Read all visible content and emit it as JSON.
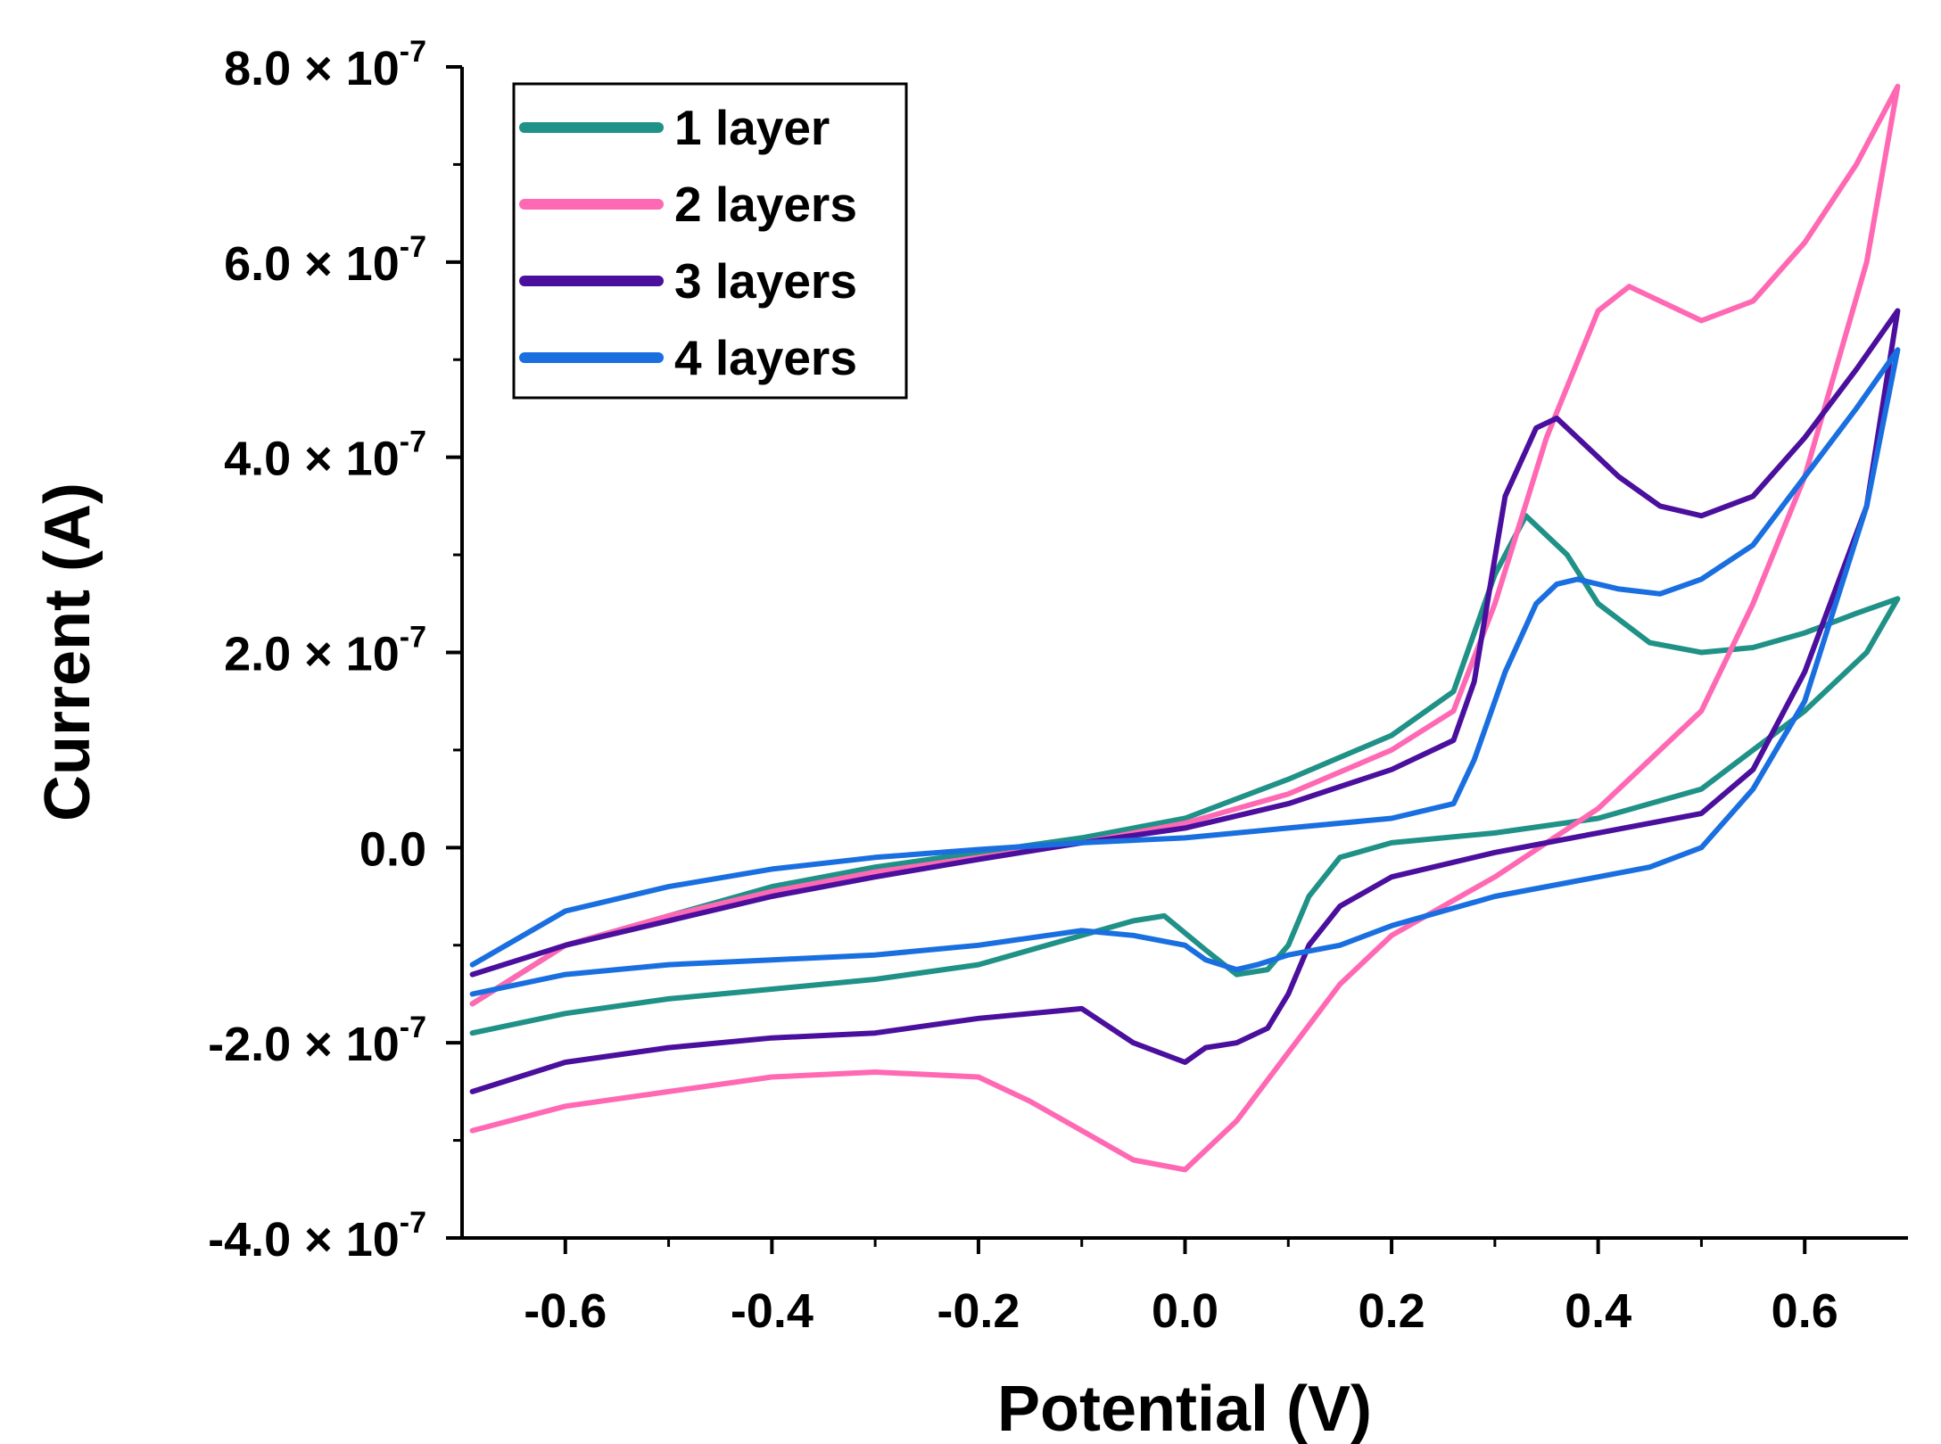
{
  "chart_data": {
    "type": "line",
    "title": "",
    "xlabel": "Potential (V)",
    "ylabel": "Current (A)",
    "xlim": [
      -0.7,
      0.7
    ],
    "ylim": [
      -4e-07,
      8e-07
    ],
    "grid": false,
    "legend_position": "top-left",
    "x_ticks": [
      {
        "value": -0.6,
        "label": "-0.6"
      },
      {
        "value": -0.4,
        "label": "-0.4"
      },
      {
        "value": -0.2,
        "label": "-0.2"
      },
      {
        "value": 0.0,
        "label": "0.0"
      },
      {
        "value": 0.2,
        "label": "0.2"
      },
      {
        "value": 0.4,
        "label": "0.4"
      },
      {
        "value": 0.6,
        "label": "0.6"
      }
    ],
    "y_ticks": [
      {
        "value": 8e-07,
        "label": "8.0 × 10",
        "exp": "-7"
      },
      {
        "value": 6e-07,
        "label": "6.0 × 10",
        "exp": "-7"
      },
      {
        "value": 4e-07,
        "label": "4.0 × 10",
        "exp": "-7"
      },
      {
        "value": 2e-07,
        "label": "2.0 × 10",
        "exp": "-7"
      },
      {
        "value": 0.0,
        "label": "0.0",
        "exp": ""
      },
      {
        "value": -2e-07,
        "label": "-2.0 × 10",
        "exp": "-7"
      },
      {
        "value": -4e-07,
        "label": "-4.0 × 10",
        "exp": "-7"
      }
    ],
    "series": [
      {
        "name": "1 layer",
        "color": "#1f9187",
        "x": [
          -0.69,
          -0.6,
          -0.5,
          -0.4,
          -0.3,
          -0.2,
          -0.1,
          0.0,
          0.1,
          0.2,
          0.26,
          0.3,
          0.33,
          0.37,
          0.4,
          0.45,
          0.5,
          0.55,
          0.6,
          0.65,
          0.69,
          0.66,
          0.6,
          0.5,
          0.4,
          0.3,
          0.2,
          0.15,
          0.12,
          0.1,
          0.08,
          0.05,
          0.02,
          -0.02,
          -0.05,
          -0.1,
          -0.2,
          -0.3,
          -0.4,
          -0.5,
          -0.6,
          -0.69
        ],
        "y": [
          -1.6e-07,
          -1e-07,
          -7e-08,
          -4e-08,
          -2e-08,
          -5e-09,
          1e-08,
          3e-08,
          7e-08,
          1.15e-07,
          1.6e-07,
          2.8e-07,
          3.4e-07,
          3e-07,
          2.5e-07,
          2.1e-07,
          2e-07,
          2.05e-07,
          2.2e-07,
          2.4e-07,
          2.55e-07,
          2e-07,
          1.4e-07,
          6e-08,
          3e-08,
          1.5e-08,
          5e-09,
          -1e-08,
          -5e-08,
          -1e-07,
          -1.25e-07,
          -1.3e-07,
          -1.05e-07,
          -7e-08,
          -7.5e-08,
          -9e-08,
          -1.2e-07,
          -1.35e-07,
          -1.45e-07,
          -1.55e-07,
          -1.7e-07,
          -1.9e-07
        ]
      },
      {
        "name": "2 layers",
        "color": "#ff69b4",
        "x": [
          -0.69,
          -0.6,
          -0.5,
          -0.4,
          -0.3,
          -0.2,
          -0.1,
          0.0,
          0.1,
          0.2,
          0.26,
          0.3,
          0.35,
          0.4,
          0.43,
          0.46,
          0.5,
          0.55,
          0.6,
          0.65,
          0.69,
          0.66,
          0.6,
          0.55,
          0.5,
          0.4,
          0.3,
          0.2,
          0.15,
          0.1,
          0.05,
          0.0,
          -0.05,
          -0.1,
          -0.15,
          -0.2,
          -0.3,
          -0.4,
          -0.5,
          -0.6,
          -0.69
        ],
        "y": [
          -1.6e-07,
          -1e-07,
          -7e-08,
          -4.5e-08,
          -2.5e-08,
          -1e-08,
          5e-09,
          2.5e-08,
          5.5e-08,
          1e-07,
          1.4e-07,
          2.5e-07,
          4.2e-07,
          5.5e-07,
          5.75e-07,
          5.6e-07,
          5.4e-07,
          5.6e-07,
          6.2e-07,
          7e-07,
          7.8e-07,
          6e-07,
          3.8e-07,
          2.5e-07,
          1.4e-07,
          4e-08,
          -3e-08,
          -9e-08,
          -1.4e-07,
          -2.1e-07,
          -2.8e-07,
          -3.3e-07,
          -3.2e-07,
          -2.9e-07,
          -2.6e-07,
          -2.35e-07,
          -2.3e-07,
          -2.35e-07,
          -2.5e-07,
          -2.65e-07,
          -2.9e-07
        ]
      },
      {
        "name": "3 layers",
        "color": "#4b0f9e",
        "x": [
          -0.69,
          -0.6,
          -0.5,
          -0.4,
          -0.3,
          -0.2,
          -0.1,
          0.0,
          0.1,
          0.2,
          0.26,
          0.28,
          0.31,
          0.34,
          0.36,
          0.38,
          0.42,
          0.46,
          0.5,
          0.55,
          0.6,
          0.65,
          0.69,
          0.66,
          0.6,
          0.55,
          0.5,
          0.4,
          0.3,
          0.2,
          0.15,
          0.12,
          0.1,
          0.08,
          0.05,
          0.02,
          0.0,
          -0.05,
          -0.1,
          -0.2,
          -0.3,
          -0.4,
          -0.5,
          -0.6,
          -0.69
        ],
        "y": [
          -1.3e-07,
          -1e-07,
          -7.5e-08,
          -5e-08,
          -3e-08,
          -1.2e-08,
          5e-09,
          2e-08,
          4.5e-08,
          8e-08,
          1.1e-07,
          1.7e-07,
          3.6e-07,
          4.3e-07,
          4.4e-07,
          4.2e-07,
          3.8e-07,
          3.5e-07,
          3.4e-07,
          3.6e-07,
          4.2e-07,
          4.9e-07,
          5.5e-07,
          3.5e-07,
          1.8e-07,
          8e-08,
          3.5e-08,
          1.5e-08,
          -5e-09,
          -3e-08,
          -6e-08,
          -1e-07,
          -1.5e-07,
          -1.85e-07,
          -2e-07,
          -2.05e-07,
          -2.2e-07,
          -2e-07,
          -1.65e-07,
          -1.75e-07,
          -1.9e-07,
          -1.95e-07,
          -2.05e-07,
          -2.2e-07,
          -2.5e-07
        ]
      },
      {
        "name": "4 layers",
        "color": "#1a6fe0",
        "x": [
          -0.69,
          -0.6,
          -0.5,
          -0.4,
          -0.3,
          -0.2,
          -0.1,
          0.0,
          0.1,
          0.2,
          0.26,
          0.28,
          0.31,
          0.34,
          0.36,
          0.38,
          0.42,
          0.46,
          0.5,
          0.55,
          0.6,
          0.65,
          0.69,
          0.66,
          0.6,
          0.55,
          0.5,
          0.45,
          0.4,
          0.3,
          0.2,
          0.15,
          0.1,
          0.07,
          0.05,
          0.02,
          0.0,
          -0.05,
          -0.1,
          -0.2,
          -0.3,
          -0.4,
          -0.5,
          -0.6,
          -0.69
        ],
        "y": [
          -1.2e-07,
          -6.5e-08,
          -4e-08,
          -2.2e-08,
          -1e-08,
          -2e-09,
          5e-09,
          1e-08,
          2e-08,
          3e-08,
          4.5e-08,
          9e-08,
          1.8e-07,
          2.5e-07,
          2.7e-07,
          2.75e-07,
          2.65e-07,
          2.6e-07,
          2.75e-07,
          3.1e-07,
          3.8e-07,
          4.5e-07,
          5.1e-07,
          3.5e-07,
          1.5e-07,
          6e-08,
          0.0,
          -2e-08,
          -3e-08,
          -5e-08,
          -8e-08,
          -1e-07,
          -1.1e-07,
          -1.2e-07,
          -1.25e-07,
          -1.15e-07,
          -1e-07,
          -9e-08,
          -8.5e-08,
          -1e-07,
          -1.1e-07,
          -1.15e-07,
          -1.2e-07,
          -1.3e-07,
          -1.5e-07
        ]
      }
    ]
  }
}
